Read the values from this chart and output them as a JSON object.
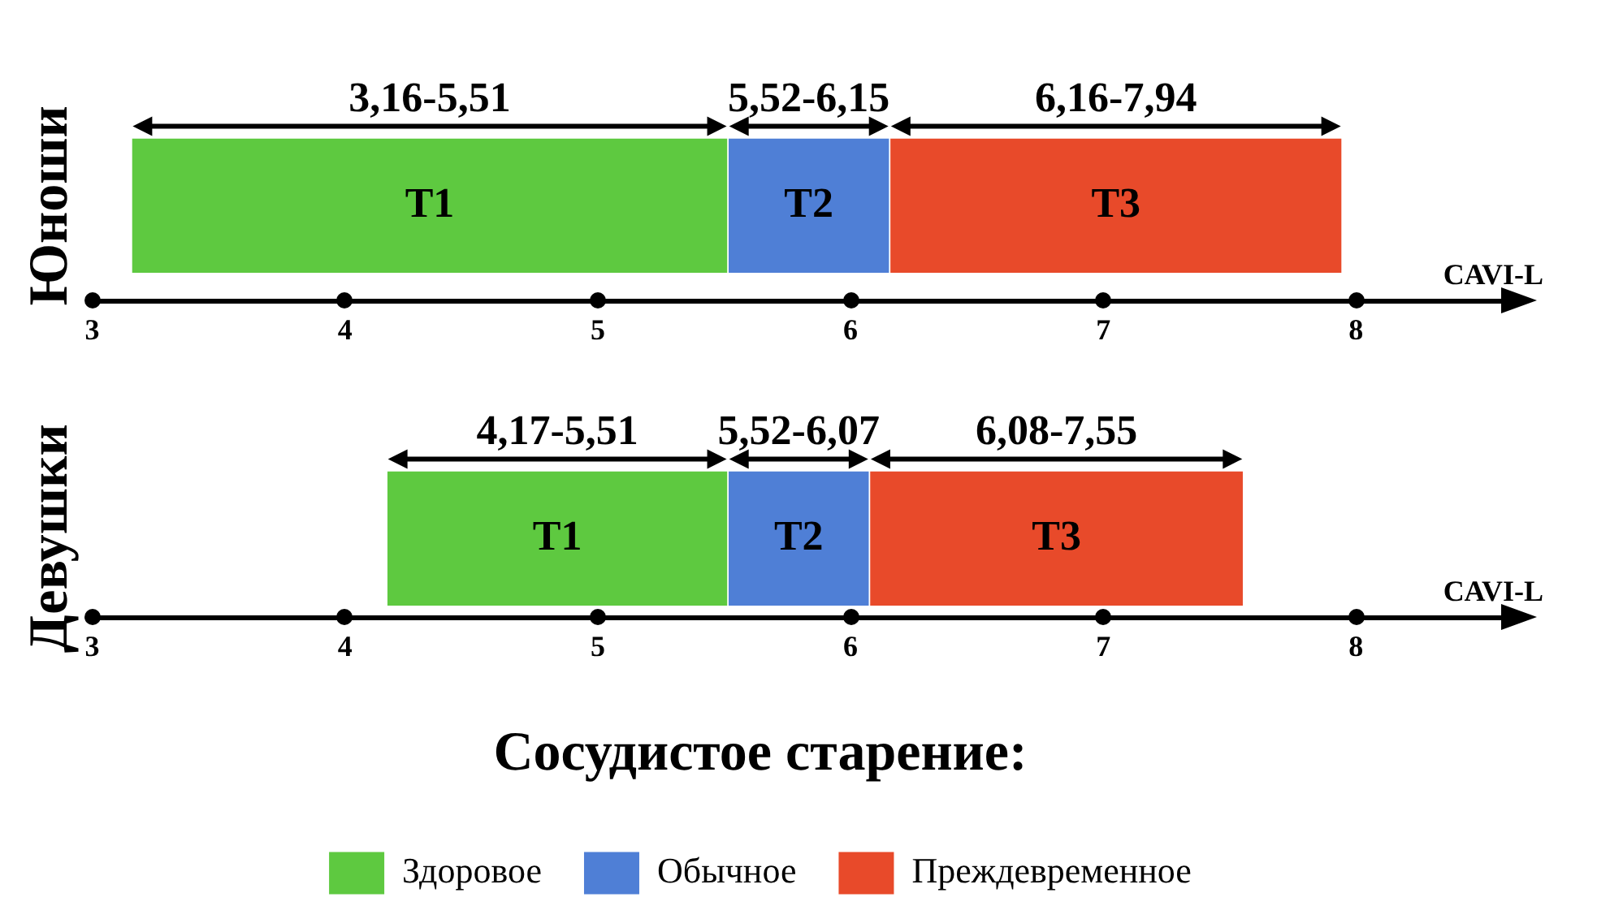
{
  "chart_data": [
    {
      "type": "bar",
      "orientation": "horizontal",
      "ylabel": "Юноши",
      "xlabel": "CAVI-L",
      "categories": [
        null
      ],
      "xlim": [
        3,
        8.6
      ],
      "xticks": [
        3,
        4,
        5,
        6,
        7,
        8
      ],
      "grid": false,
      "legend": false,
      "tick_labels": "x",
      "series": [
        {
          "color": "#5ec940",
          "values": [
            2.35
          ],
          "base": [
            3.16
          ]
        },
        {
          "color": "#4f7fd6",
          "values": [
            0.63
          ],
          "base": [
            5.52
          ]
        },
        {
          "color": "#e84a2a",
          "values": [
            1.78
          ],
          "base": [
            6.16
          ]
        }
      ],
      "annotations": [
        "3,16-5,51",
        "5,52-6,15",
        "6,16-7,94",
        "T1",
        "T2",
        "T3"
      ]
    },
    {
      "type": "bar",
      "orientation": "horizontal",
      "ylabel": "Девушки",
      "xlabel": "CAVI-L",
      "categories": [
        null
      ],
      "xlim": [
        3,
        8.6
      ],
      "xticks": [
        3,
        4,
        5,
        6,
        7,
        8
      ],
      "grid": false,
      "legend": "bottom",
      "legend_title": "Сосудистое старение:",
      "tick_labels": "x",
      "series": [
        {
          "name": "Здоровое",
          "color": "#5ec940",
          "values": [
            1.34
          ],
          "base": [
            4.17
          ]
        },
        {
          "name": "Обычное",
          "color": "#4f7fd6",
          "values": [
            0.55
          ],
          "base": [
            5.52
          ]
        },
        {
          "name": "Преждевременное",
          "color": "#e84a2a",
          "values": [
            1.47
          ],
          "base": [
            6.08
          ]
        }
      ],
      "annotations": [
        "4,17-5,51",
        "5,52-6,07",
        "6,08-7,55",
        "T1",
        "T2",
        "T3"
      ]
    }
  ]
}
